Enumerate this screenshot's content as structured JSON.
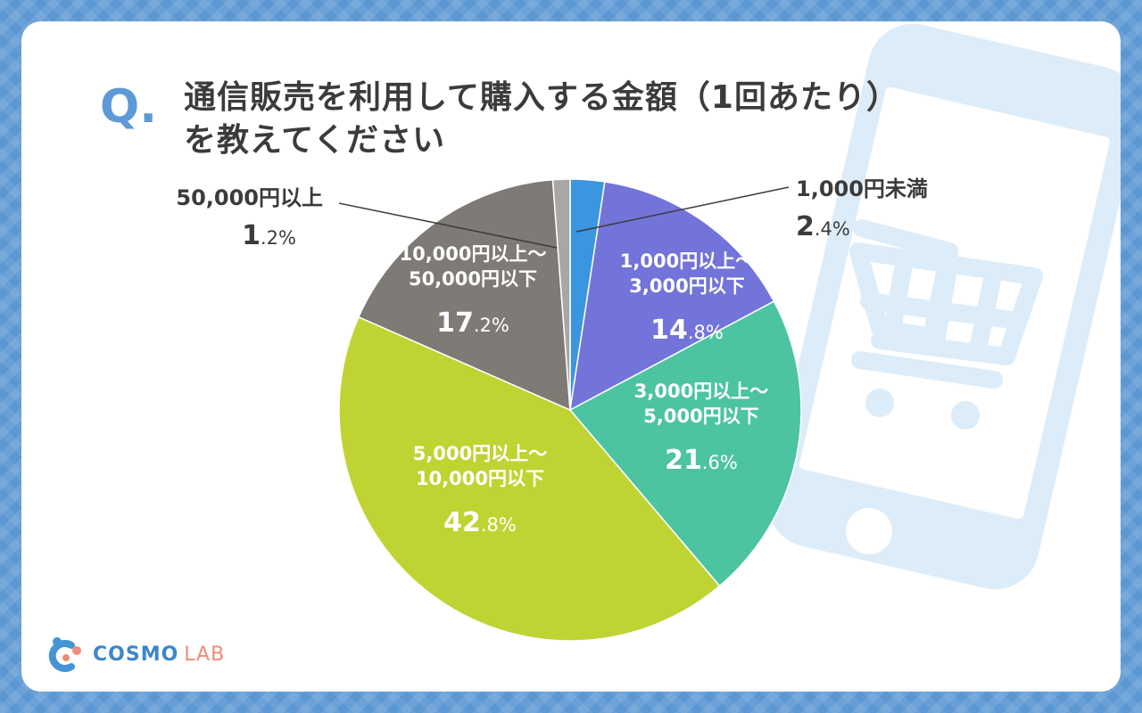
{
  "title": {
    "q_mark": "Q.",
    "line1": "通信販売を利用して購入する金額（1回あたり）",
    "line2": "を教えてください"
  },
  "logo": {
    "brand": "COSMO",
    "sub": "LAB"
  },
  "colors": {
    "background": "#5b97d3",
    "accent": "#5d9ad7",
    "phone_decor": "#dcecf8"
  },
  "chart_data": {
    "type": "pie",
    "title": "通信販売を利用して購入する金額（1回あたり）を教えてください",
    "start_angle_deg": 0,
    "direction": "clockwise",
    "slices": [
      {
        "label": "1,000円未満",
        "label_line2": "",
        "value": 2.4,
        "integer": "2",
        "decimal": ".4%",
        "color": "#3a96e0",
        "label_placement": "outside-right"
      },
      {
        "label": "1,000円以上～",
        "label_line2": "3,000円以下",
        "value": 14.8,
        "integer": "14",
        "decimal": ".8%",
        "color": "#7274d9",
        "label_placement": "inside"
      },
      {
        "label": "3,000円以上～",
        "label_line2": "5,000円以下",
        "value": 21.6,
        "integer": "21",
        "decimal": ".6%",
        "color": "#4cc4a2",
        "label_placement": "inside"
      },
      {
        "label": "5,000円以上～",
        "label_line2": "10,000円以下",
        "value": 42.8,
        "integer": "42",
        "decimal": ".8%",
        "color": "#bfd433",
        "label_placement": "inside"
      },
      {
        "label": "10,000円以上～",
        "label_line2": "50,000円以下",
        "value": 17.2,
        "integer": "17",
        "decimal": ".2%",
        "color": "#7e7a75",
        "label_placement": "inside"
      },
      {
        "label": "50,000円以上",
        "label_line2": "",
        "value": 1.2,
        "integer": "1",
        "decimal": ".2%",
        "color": "#a9a7a5",
        "label_placement": "outside-left"
      }
    ]
  }
}
